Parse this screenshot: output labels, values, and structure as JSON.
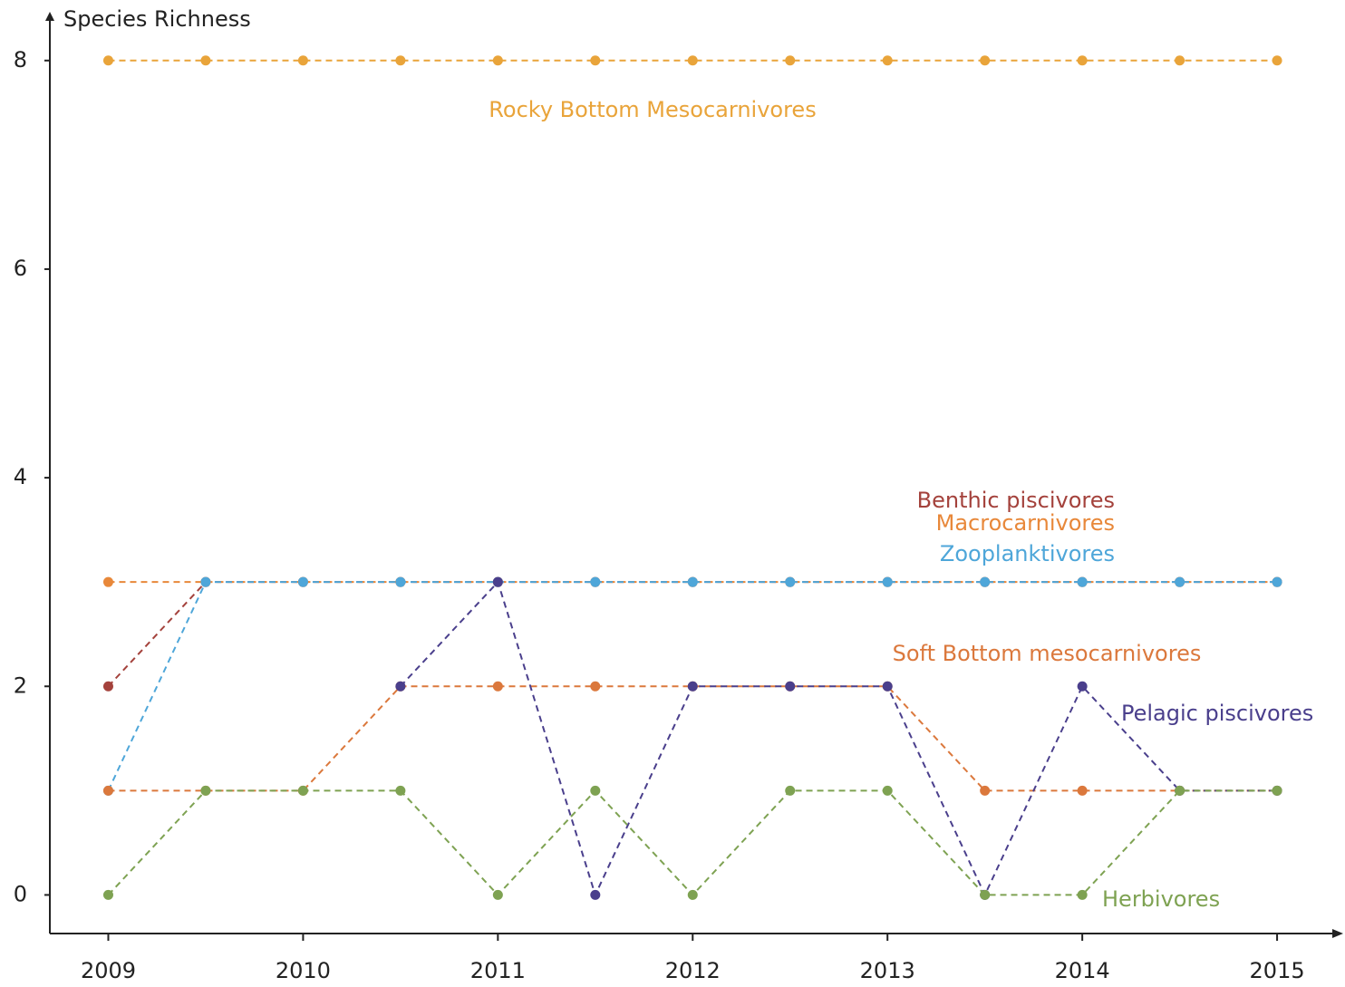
{
  "chart_data": {
    "type": "line",
    "y_label": "Species Richness",
    "x": [
      2009,
      2009.5,
      2010,
      2010.5,
      2011,
      2011.5,
      2012,
      2012.5,
      2013,
      2013.5,
      2014,
      2014.5,
      2015
    ],
    "xlim": [
      2008.7,
      2015.33
    ],
    "xticks": [
      2009,
      2010,
      2011,
      2012,
      2013,
      2014,
      2015
    ],
    "ylim": [
      -0.37,
      8.45
    ],
    "yticks": [
      0,
      2,
      4,
      6,
      8
    ],
    "grid": false,
    "series": [
      {
        "name": "Rocky Bottom Mesocarnivores",
        "color": "#e9a43a",
        "values": [
          8,
          8,
          8,
          8,
          8,
          8,
          8,
          8,
          8,
          8,
          8,
          8,
          8
        ]
      },
      {
        "name": "Benthic piscivores",
        "color": "#a4423c",
        "values": [
          2,
          3,
          3,
          3,
          3,
          3,
          3,
          3,
          3,
          3,
          3,
          3,
          3
        ]
      },
      {
        "name": "Macrocarnivores",
        "color": "#e8883a",
        "values": [
          3,
          3,
          3,
          3,
          3,
          3,
          3,
          3,
          3,
          3,
          3,
          3,
          3
        ]
      },
      {
        "name": "Zooplanktivores",
        "color": "#4ea6d9",
        "values": [
          1,
          3,
          3,
          3,
          3,
          3,
          3,
          3,
          3,
          3,
          3,
          3,
          3
        ]
      },
      {
        "name": "Soft Bottom mesocarnivores",
        "color": "#db783c",
        "values": [
          1,
          1,
          1,
          2,
          2,
          2,
          2,
          2,
          2,
          1,
          1,
          1,
          1
        ]
      },
      {
        "name": "Pelagic piscivores",
        "color": "#4a3f8c",
        "values": [
          null,
          null,
          null,
          2,
          3,
          0,
          2,
          2,
          2,
          0,
          2,
          1,
          1
        ]
      },
      {
        "name": "Herbivores",
        "color": "#7ea252",
        "values": [
          0,
          1,
          1,
          1,
          0,
          1,
          0,
          1,
          1,
          0,
          0,
          1,
          1
        ]
      }
    ]
  }
}
